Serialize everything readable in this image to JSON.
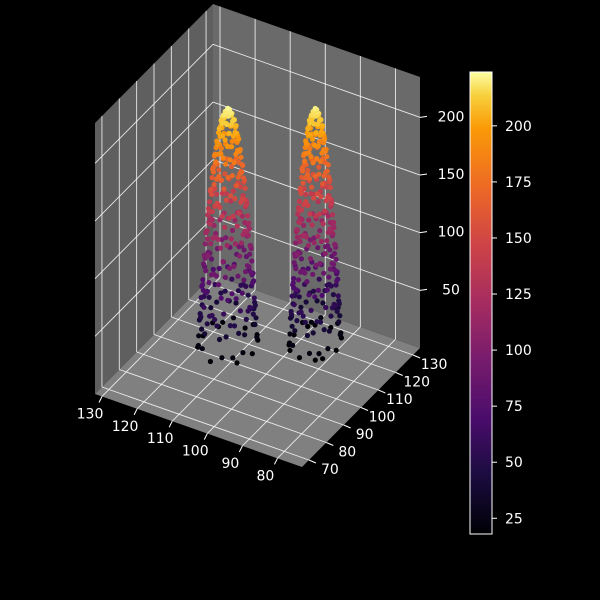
{
  "chart_data": {
    "type": "scatter",
    "subtype": "3d-scatter",
    "title": "",
    "xlabel": "",
    "ylabel": "",
    "zlabel": "",
    "x_ticks": [
      "80",
      "90",
      "100",
      "110",
      "120",
      "130"
    ],
    "y_ticks": [
      "70",
      "80",
      "90",
      "100",
      "110",
      "120",
      "130"
    ],
    "z_ticks": [
      "50",
      "100",
      "150",
      "200"
    ],
    "xlim": [
      73,
      132
    ],
    "ylim": [
      66,
      134
    ],
    "zlim": [
      0,
      235
    ],
    "colormap": "inferno",
    "colorbar": {
      "ticks": [
        "25",
        "50",
        "75",
        "100",
        "125",
        "150",
        "175",
        "200"
      ],
      "range": [
        18,
        224
      ]
    },
    "grid": true,
    "clusters": [
      {
        "x_center": 92,
        "y_center": 112,
        "z_peak": 220,
        "x_half_width": 6,
        "y_half_width": 9
      },
      {
        "x_center": 110,
        "y_center": 98,
        "z_peak": 222,
        "x_half_width": 7,
        "y_half_width": 10
      }
    ],
    "colors": {
      "background": "#000000",
      "pane": "#777777",
      "grid": "#ffffff",
      "text": "#ffffff"
    }
  }
}
